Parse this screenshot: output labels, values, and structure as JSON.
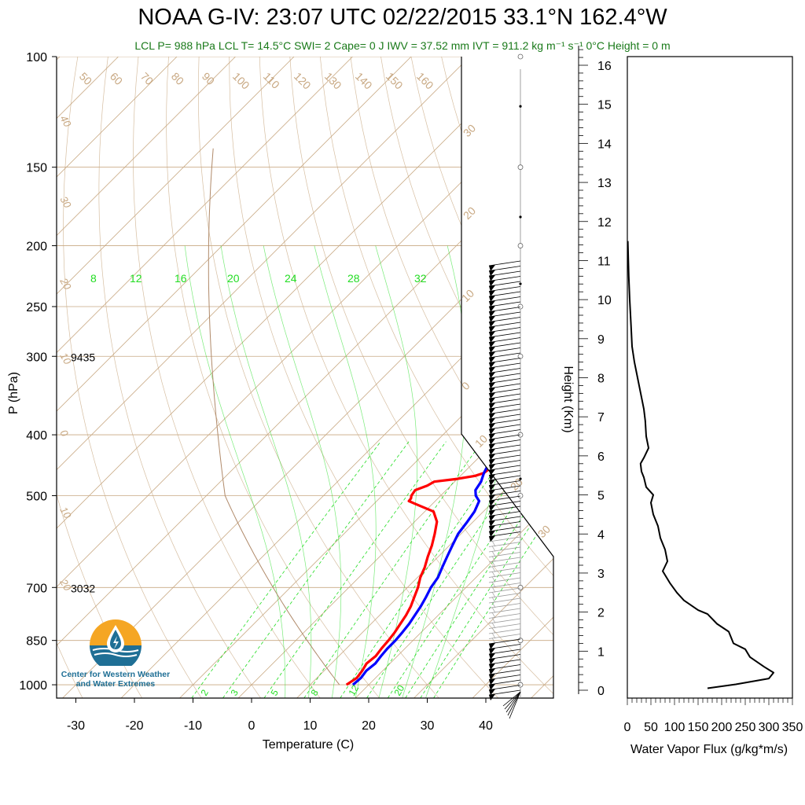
{
  "title": "NOAA G-IV: 23:07 UTC 02/22/2015  33.1°N 162.4°W",
  "subtitle": "LCL P= 988 hPa  LCL T= 14.5°C  SWI= 2  Cape= 0 J  IWV = 37.52 mm  IVT = 911.2 kg m⁻¹ s⁻¹  0°C Height = 0 m",
  "logo": {
    "line1": "Center for Western Weather",
    "line2": "and Water Extremes",
    "icon": "water-drop-sun-icon"
  },
  "colors": {
    "temperature": "#ff0000",
    "dewpoint": "#0000ff",
    "mixing_ratio": "#22dd22",
    "isotherm": "#c8a882",
    "flux": "#000000",
    "subtitle": "#1a7a1a"
  },
  "annotations": [
    {
      "text": "9435",
      "p": 300
    },
    {
      "text": "3032",
      "p": 700
    }
  ],
  "chart_data": [
    {
      "type": "line",
      "subtype": "skew-t log-p",
      "xlabel": "Temperature (C)",
      "ylabel": "P (hPa)",
      "xlim": [
        -35,
        45
      ],
      "ylim": [
        1050,
        100
      ],
      "y_scale": "log",
      "x_ticks": [
        "-30",
        "-20",
        "-10",
        "0",
        "10",
        "20",
        "30",
        "40"
      ],
      "y_ticks": [
        "100",
        "150",
        "200",
        "250",
        "300",
        "400",
        "500",
        "700",
        "850",
        "1000"
      ],
      "isotherm_labels": [
        "50",
        "60",
        "70",
        "80",
        "90",
        "100",
        "110",
        "120",
        "130",
        "140",
        "150",
        "160",
        "40",
        "30",
        "20",
        "10",
        "0",
        "10",
        "20",
        "30",
        "20",
        "10",
        "0",
        "10",
        "20",
        "30"
      ],
      "mixing_ratio_labels_top": [
        "8",
        "12",
        "16",
        "20",
        "24",
        "28",
        "32"
      ],
      "mixing_ratio_labels_bottom": [
        "2",
        "3",
        "5",
        "8",
        "12",
        "20"
      ],
      "series": [
        {
          "name": "",
          "kind": "temperature",
          "points": [
            [
              1000,
              16.2
            ],
            [
              975,
              16.8
            ],
            [
              950,
              16.5
            ],
            [
              925,
              16.0
            ],
            [
              900,
              16.3
            ],
            [
              875,
              16.0
            ],
            [
              850,
              15.8
            ],
            [
              825,
              15.5
            ],
            [
              800,
              15.0
            ],
            [
              775,
              14.5
            ],
            [
              750,
              13.8
            ],
            [
              725,
              12.8
            ],
            [
              700,
              11.8
            ],
            [
              675,
              10.5
            ],
            [
              650,
              9.5
            ],
            [
              625,
              8.2
            ],
            [
              600,
              7.0
            ],
            [
              575,
              5.5
            ],
            [
              550,
              3.8
            ],
            [
              530,
              1.5
            ],
            [
              515,
              -3.0
            ],
            [
              510,
              -4.5
            ],
            [
              505,
              -4.6
            ],
            [
              500,
              -5.0
            ],
            [
              490,
              -5.3
            ],
            [
              482,
              -4.0
            ],
            [
              475,
              -3.5
            ],
            [
              470,
              0.0
            ],
            [
              465,
              2.5
            ],
            [
              460,
              3.5
            ],
            [
              450,
              3.8
            ],
            [
              440,
              3.5
            ],
            [
              430,
              3.0
            ],
            [
              420,
              2.5
            ],
            [
              410,
              1.5
            ],
            [
              400,
              1.0
            ],
            [
              390,
              0.8
            ],
            [
              380,
              1.0
            ],
            [
              370,
              0.8
            ],
            [
              360,
              0.0
            ],
            [
              350,
              -1.0
            ],
            [
              340,
              -2.5
            ],
            [
              330,
              -3.8
            ],
            [
              320,
              -5.0
            ],
            [
              310,
              -6.5
            ],
            [
              300,
              -8.0
            ],
            [
              290,
              -9.5
            ],
            [
              280,
              -11.0
            ],
            [
              270,
              -12.0
            ],
            [
              260,
              -13.5
            ],
            [
              250,
              -15.0
            ],
            [
              240,
              -16.5
            ],
            [
              230,
              -17.5
            ],
            [
              225,
              -18.5
            ],
            [
              220,
              -20.0
            ],
            [
              215,
              -21.0
            ],
            [
              212,
              -21.3
            ]
          ]
        },
        {
          "name": "",
          "kind": "dewpoint",
          "points": [
            [
              1000,
              17.3
            ],
            [
              975,
              17.5
            ],
            [
              950,
              17.2
            ],
            [
              925,
              17.5
            ],
            [
              900,
              17.2
            ],
            [
              875,
              17.0
            ],
            [
              850,
              17.0
            ],
            [
              825,
              16.8
            ],
            [
              800,
              16.5
            ],
            [
              775,
              16.0
            ],
            [
              750,
              15.5
            ],
            [
              725,
              14.8
            ],
            [
              700,
              14.0
            ],
            [
              675,
              13.5
            ],
            [
              650,
              12.5
            ],
            [
              625,
              11.5
            ],
            [
              600,
              10.5
            ],
            [
              575,
              9.5
            ],
            [
              550,
              9.0
            ],
            [
              530,
              8.5
            ],
            [
              510,
              7.5
            ],
            [
              500,
              6.0
            ],
            [
              490,
              5.0
            ],
            [
              475,
              4.5
            ],
            [
              460,
              3.5
            ],
            [
              450,
              3.0
            ],
            [
              440,
              2.5
            ],
            [
              425,
              1.5
            ],
            [
              410,
              1.0
            ],
            [
              400,
              1.5
            ],
            [
              390,
              2.0
            ],
            [
              380,
              2.0
            ],
            [
              370,
              1.5
            ],
            [
              360,
              1.2
            ],
            [
              350,
              0.5
            ],
            [
              340,
              -0.5
            ],
            [
              330,
              -1.5
            ],
            [
              320,
              -2.5
            ],
            [
              310,
              -3.5
            ],
            [
              300,
              -4.5
            ],
            [
              290,
              -5.5
            ],
            [
              280,
              -6.5
            ],
            [
              270,
              -7.5
            ],
            [
              260,
              -8.5
            ],
            [
              250,
              -9.3
            ],
            [
              240,
              -9.8
            ],
            [
              230,
              -10.0
            ],
            [
              222,
              -10.3
            ],
            [
              215,
              -10.5
            ],
            [
              212,
              -10.4
            ]
          ]
        }
      ]
    },
    {
      "type": "line",
      "xlabel": "Water Vapor Flux (g/kg*m/s)",
      "ylabel": "Height (Km)",
      "xlim": [
        0,
        350
      ],
      "ylim": [
        0,
        16.5
      ],
      "x_ticks": [
        "0",
        "50",
        "100",
        "150",
        "200",
        "250",
        "300",
        "350"
      ],
      "y_ticks": [
        "0",
        "1",
        "2",
        "3",
        "4",
        "5",
        "6",
        "7",
        "8",
        "9",
        "10",
        "11",
        "12",
        "13",
        "14",
        "15",
        "16"
      ],
      "series": [
        {
          "name": "",
          "points": [
            [
              170,
              0.05
            ],
            [
              230,
              0.15
            ],
            [
              300,
              0.3
            ],
            [
              310,
              0.45
            ],
            [
              290,
              0.6
            ],
            [
              260,
              0.85
            ],
            [
              250,
              1.05
            ],
            [
              225,
              1.2
            ],
            [
              215,
              1.5
            ],
            [
              190,
              1.7
            ],
            [
              170,
              1.95
            ],
            [
              150,
              2.05
            ],
            [
              120,
              2.3
            ],
            [
              105,
              2.5
            ],
            [
              90,
              2.75
            ],
            [
              75,
              3.05
            ],
            [
              85,
              3.3
            ],
            [
              80,
              3.6
            ],
            [
              70,
              3.9
            ],
            [
              65,
              4.2
            ],
            [
              55,
              4.5
            ],
            [
              50,
              4.8
            ],
            [
              55,
              5.0
            ],
            [
              40,
              5.2
            ],
            [
              35,
              5.45
            ],
            [
              30,
              5.6
            ],
            [
              28,
              5.8
            ],
            [
              35,
              5.95
            ],
            [
              45,
              6.2
            ],
            [
              40,
              6.5
            ],
            [
              38,
              6.9
            ],
            [
              35,
              7.2
            ],
            [
              30,
              7.5
            ],
            [
              25,
              7.8
            ],
            [
              20,
              8.1
            ],
            [
              15,
              8.4
            ],
            [
              10,
              8.8
            ],
            [
              8,
              9.3
            ],
            [
              5,
              10.0
            ],
            [
              3,
              10.6
            ],
            [
              1,
              11.5
            ]
          ]
        }
      ]
    }
  ]
}
